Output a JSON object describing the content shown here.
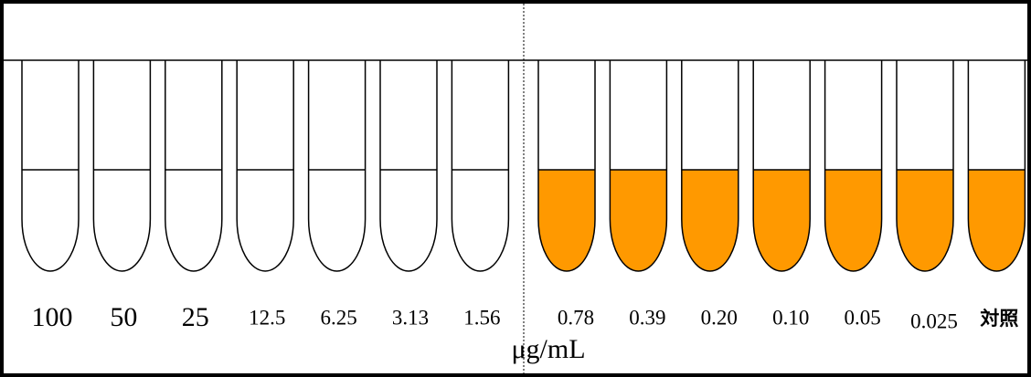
{
  "tubes": [
    {
      "label": "100",
      "filled": false
    },
    {
      "label": "50",
      "filled": false
    },
    {
      "label": "25",
      "filled": false
    },
    {
      "label": "12.5",
      "filled": false
    },
    {
      "label": "6.25",
      "filled": false
    },
    {
      "label": "3.13",
      "filled": false
    },
    {
      "label": "1.56",
      "filled": false
    },
    {
      "label": "0.78",
      "filled": true
    },
    {
      "label": "0.39",
      "filled": true
    },
    {
      "label": "0.20",
      "filled": true
    },
    {
      "label": "0.10",
      "filled": true
    },
    {
      "label": "0.05",
      "filled": true
    },
    {
      "label": "0.025",
      "filled": true
    },
    {
      "label": "対照",
      "filled": true
    }
  ],
  "unit": "μg/mL",
  "fill_color": "#ff9900"
}
